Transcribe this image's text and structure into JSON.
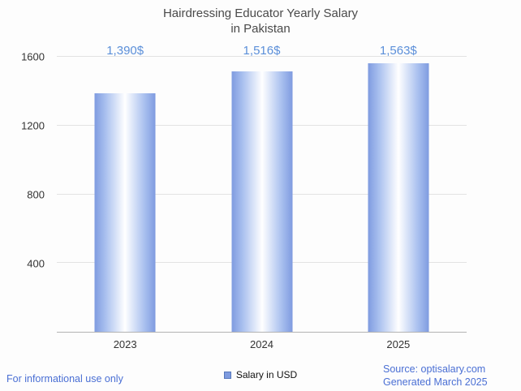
{
  "title": {
    "line1": "Hairdressing Educator Yearly Salary",
    "line2": "in Pakistan"
  },
  "chart_data": {
    "type": "bar",
    "title": "Hairdressing Educator Yearly Salary in Pakistan",
    "categories": [
      "2023",
      "2024",
      "2025"
    ],
    "values": [
      1390,
      1516,
      1563
    ],
    "value_labels": [
      "1,390$",
      "1,516$",
      "1,563$"
    ],
    "xlabel": "",
    "ylabel": "",
    "ylim": [
      0,
      1600
    ],
    "yticks": [
      400,
      800,
      1200,
      1600
    ],
    "grid": true,
    "legend": {
      "label": "Salary in USD",
      "position": "bottom"
    },
    "bar_color": "#7f9be0",
    "value_label_color": "#5b8fd9"
  },
  "footer": {
    "left": "For informational use only",
    "source": "Source: optisalary.com",
    "generated": "Generated March 2025"
  },
  "colors": {
    "accent_blue": "#5b8fd9",
    "link_blue": "#4a6fd4",
    "axis_text": "#333333",
    "title_text": "#4a4a4a",
    "gridline": "#e3e3e3"
  }
}
